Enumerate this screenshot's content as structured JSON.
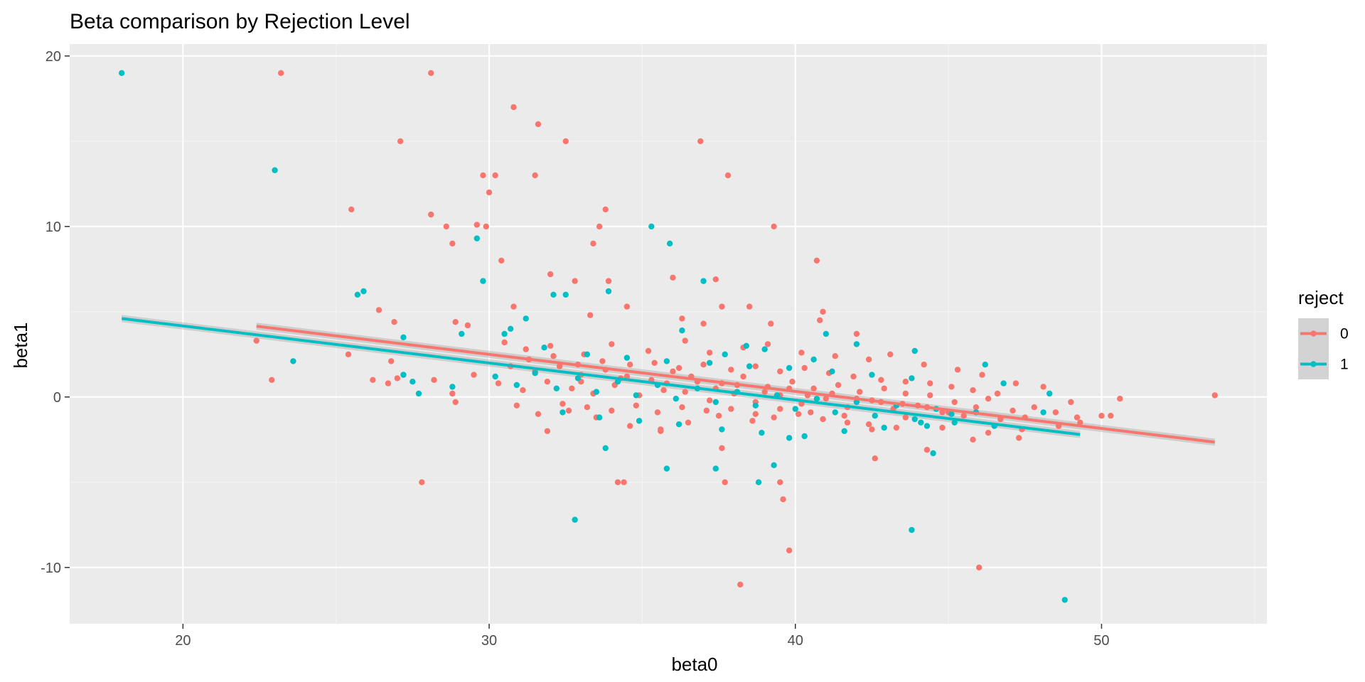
{
  "chart_data": {
    "type": "scatter",
    "title": "Beta comparison by Rejection Level",
    "xlabel": "beta0",
    "ylabel": "beta1",
    "xlim": [
      16.3,
      55.4
    ],
    "ylim": [
      -13.3,
      20.7
    ],
    "x_major_ticks": [
      20,
      30,
      40,
      50
    ],
    "x_minor_ticks": [
      25,
      35,
      45,
      55
    ],
    "y_major_ticks": [
      -10,
      0,
      10,
      20
    ],
    "y_minor_ticks": [
      -5,
      5,
      15
    ],
    "x_tick_labels": [
      "20",
      "30",
      "40",
      "50"
    ],
    "y_tick_labels": [
      "-10",
      "0",
      "10",
      "20"
    ],
    "grid": true,
    "panel_background": "#ebebeb",
    "legend": {
      "title": "reject",
      "placement": "right",
      "entries": [
        {
          "label": "0",
          "color": "#f8766d"
        },
        {
          "label": "1",
          "color": "#00bfc4"
        }
      ]
    },
    "series": [
      {
        "name": "0",
        "color": "#f8766d",
        "points": [
          [
            23.2,
            19
          ],
          [
            28.1,
            19
          ],
          [
            30.8,
            17
          ],
          [
            31.6,
            16
          ],
          [
            32.5,
            15
          ],
          [
            27.1,
            15
          ],
          [
            36.9,
            15
          ],
          [
            31.5,
            13
          ],
          [
            37.8,
            13
          ],
          [
            29.8,
            13
          ],
          [
            30.2,
            13
          ],
          [
            30.0,
            12
          ],
          [
            25.5,
            11
          ],
          [
            33.8,
            11
          ],
          [
            28.1,
            10.7
          ],
          [
            28.6,
            10
          ],
          [
            29.9,
            10
          ],
          [
            33.6,
            10
          ],
          [
            39.3,
            10
          ],
          [
            29.6,
            10.1
          ],
          [
            28.8,
            9
          ],
          [
            33.4,
            9
          ],
          [
            30.4,
            8
          ],
          [
            40.7,
            8
          ],
          [
            32.0,
            7.2
          ],
          [
            36.0,
            7
          ],
          [
            37.4,
            6.9
          ],
          [
            33.9,
            6.8
          ],
          [
            32.8,
            6.8
          ],
          [
            26.4,
            5.1
          ],
          [
            26.9,
            4.4
          ],
          [
            30.8,
            5.3
          ],
          [
            33.3,
            4.8
          ],
          [
            34.5,
            5.3
          ],
          [
            37.6,
            5.3
          ],
          [
            38.5,
            5.3
          ],
          [
            39.2,
            4.3
          ],
          [
            40.9,
            5
          ],
          [
            40.8,
            4.5
          ],
          [
            42.0,
            3.7
          ],
          [
            36.3,
            4.6
          ],
          [
            37.0,
            4.3
          ],
          [
            29.3,
            4.2
          ],
          [
            28.9,
            4.4
          ],
          [
            22.4,
            3.3
          ],
          [
            25.4,
            2.5
          ],
          [
            22.9,
            1.0
          ],
          [
            26.2,
            1.0
          ],
          [
            26.7,
            0.8
          ],
          [
            26.8,
            2.1
          ],
          [
            27.0,
            1.1
          ],
          [
            27.2,
            1.3
          ],
          [
            28.2,
            1.0
          ],
          [
            28.8,
            0.2
          ],
          [
            28.9,
            -0.3
          ],
          [
            29.5,
            1.3
          ],
          [
            27.8,
            -5
          ],
          [
            34.2,
            -5
          ],
          [
            34.4,
            -5
          ],
          [
            37.7,
            -5
          ],
          [
            39.5,
            -5
          ],
          [
            39.6,
            -6
          ],
          [
            39.8,
            -9
          ],
          [
            38.2,
            -11
          ],
          [
            46.0,
            -10
          ],
          [
            44.3,
            -3.1
          ],
          [
            42.6,
            -3.6
          ],
          [
            37.6,
            -3
          ],
          [
            30.5,
            3.2
          ],
          [
            31.2,
            2.8
          ],
          [
            32.0,
            3.0
          ],
          [
            33.1,
            2.5
          ],
          [
            34.0,
            3.1
          ],
          [
            35.2,
            2.7
          ],
          [
            36.4,
            3.3
          ],
          [
            37.2,
            2.6
          ],
          [
            38.3,
            2.9
          ],
          [
            39.1,
            3.1
          ],
          [
            40.2,
            2.6
          ],
          [
            41.3,
            2.4
          ],
          [
            42.4,
            2.2
          ],
          [
            43.1,
            2.5
          ],
          [
            44.2,
            1.9
          ],
          [
            45.3,
            1.6
          ],
          [
            46.1,
            1.3
          ],
          [
            47.2,
            0.8
          ],
          [
            48.1,
            0.6
          ],
          [
            49.0,
            -0.3
          ],
          [
            50.0,
            -1.1
          ],
          [
            50.3,
            -1.1
          ],
          [
            50.6,
            -0.1
          ],
          [
            53.7,
            0.1
          ],
          [
            49.3,
            -1.5
          ],
          [
            48.6,
            -1.7
          ],
          [
            47.4,
            -1.9
          ],
          [
            47.3,
            -2.4
          ],
          [
            46.3,
            -2.1
          ],
          [
            45.8,
            -2.5
          ],
          [
            44.8,
            -1.8
          ],
          [
            43.6,
            -1.2
          ],
          [
            42.5,
            -1.9
          ],
          [
            41.6,
            -1.1
          ],
          [
            40.5,
            -0.9
          ],
          [
            39.5,
            -0.7
          ],
          [
            38.6,
            -1.4
          ],
          [
            37.5,
            -1.1
          ],
          [
            36.5,
            -1.5
          ],
          [
            35.6,
            -2.0
          ],
          [
            34.6,
            -1.7
          ],
          [
            33.5,
            -1.2
          ],
          [
            32.6,
            -0.8
          ],
          [
            31.6,
            -1.0
          ],
          [
            30.9,
            -0.5
          ],
          [
            31.9,
            -2.0
          ],
          [
            35.6,
            -1.9
          ],
          [
            30.3,
            0.8
          ],
          [
            30.7,
            1.8
          ],
          [
            31.1,
            0.4
          ],
          [
            31.5,
            1.5
          ],
          [
            31.9,
            0.9
          ],
          [
            32.3,
            1.8
          ],
          [
            32.7,
            0.5
          ],
          [
            33.0,
            1.3
          ],
          [
            33.4,
            0.2
          ],
          [
            33.8,
            1.6
          ],
          [
            34.1,
            0.7
          ],
          [
            34.5,
            1.2
          ],
          [
            34.9,
            0.1
          ],
          [
            35.3,
            1.0
          ],
          [
            35.7,
            0.4
          ],
          [
            36.0,
            1.5
          ],
          [
            36.4,
            0.3
          ],
          [
            36.8,
            0.9
          ],
          [
            37.2,
            -0.2
          ],
          [
            37.6,
            0.8
          ],
          [
            38.0,
            0.2
          ],
          [
            38.3,
            1.2
          ],
          [
            38.7,
            -0.3
          ],
          [
            39.1,
            0.6
          ],
          [
            39.5,
            0.1
          ],
          [
            39.9,
            0.9
          ],
          [
            40.2,
            -0.4
          ],
          [
            40.6,
            0.5
          ],
          [
            41.0,
            -0.1
          ],
          [
            41.4,
            0.7
          ],
          [
            41.7,
            -0.6
          ],
          [
            42.1,
            0.3
          ],
          [
            42.5,
            -0.2
          ],
          [
            42.9,
            0.5
          ],
          [
            43.2,
            -0.7
          ],
          [
            43.6,
            0.2
          ],
          [
            44.0,
            -0.5
          ],
          [
            44.4,
            0.1
          ],
          [
            44.8,
            -0.9
          ],
          [
            45.2,
            -0.3
          ],
          [
            45.5,
            -1.1
          ],
          [
            45.9,
            -0.6
          ],
          [
            46.3,
            -0.1
          ],
          [
            46.7,
            -1.3
          ],
          [
            47.1,
            -0.8
          ],
          [
            47.5,
            -1.2
          ],
          [
            31.3,
            2.2
          ],
          [
            32.1,
            2.4
          ],
          [
            32.9,
            1.9
          ],
          [
            33.7,
            2.1
          ],
          [
            34.6,
            1.9
          ],
          [
            35.4,
            2.0
          ],
          [
            36.2,
            1.7
          ],
          [
            37.0,
            1.9
          ],
          [
            37.9,
            1.6
          ],
          [
            38.7,
            1.8
          ],
          [
            39.5,
            1.5
          ],
          [
            40.3,
            1.7
          ],
          [
            41.1,
            1.4
          ],
          [
            41.9,
            1.2
          ],
          [
            42.8,
            1.0
          ],
          [
            43.6,
            0.9
          ],
          [
            44.4,
            0.8
          ],
          [
            45.1,
            0.6
          ],
          [
            45.8,
            0.4
          ],
          [
            46.6,
            0.2
          ],
          [
            32.4,
            -0.4
          ],
          [
            33.2,
            -0.6
          ],
          [
            34.0,
            -0.8
          ],
          [
            34.8,
            -0.5
          ],
          [
            35.5,
            -0.9
          ],
          [
            36.3,
            -0.6
          ],
          [
            37.1,
            -0.8
          ],
          [
            37.9,
            -0.7
          ],
          [
            38.7,
            -1.0
          ],
          [
            39.3,
            -1.2
          ],
          [
            40.1,
            -1.0
          ],
          [
            40.9,
            -1.3
          ],
          [
            41.7,
            -1.5
          ],
          [
            42.4,
            -1.6
          ],
          [
            43.3,
            -1.8
          ],
          [
            33.0,
            0.9
          ],
          [
            34.3,
            1.1
          ],
          [
            35.8,
            0.8
          ],
          [
            36.6,
            1.2
          ],
          [
            37.4,
            0.5
          ],
          [
            38.1,
            0.7
          ],
          [
            39.0,
            0.3
          ],
          [
            39.8,
            0.5
          ],
          [
            40.4,
            0.1
          ],
          [
            41.2,
            0.2
          ],
          [
            42.0,
            -0.1
          ],
          [
            42.8,
            -0.3
          ],
          [
            43.5,
            -0.4
          ],
          [
            44.3,
            -0.6
          ],
          [
            45.0,
            -0.9
          ],
          [
            47.8,
            -0.6
          ],
          [
            48.5,
            -0.9
          ],
          [
            49.2,
            -1.2
          ]
        ],
        "trend": {
          "x_start": 22.4,
          "y_start": 4.15,
          "x_end": 53.7,
          "y_end": -2.65
        }
      },
      {
        "name": "1",
        "color": "#00bfc4",
        "points": [
          [
            18.0,
            19
          ],
          [
            23.0,
            13.3
          ],
          [
            29.6,
            9.3
          ],
          [
            35.3,
            10
          ],
          [
            35.9,
            9
          ],
          [
            29.8,
            6.8
          ],
          [
            33.9,
            6.2
          ],
          [
            25.9,
            6.2
          ],
          [
            25.7,
            6.0
          ],
          [
            32.1,
            6.0
          ],
          [
            32.5,
            6.0
          ],
          [
            37.0,
            6.8
          ],
          [
            30.7,
            4.0
          ],
          [
            31.2,
            4.6
          ],
          [
            27.2,
            3.5
          ],
          [
            27.7,
            0.2
          ],
          [
            23.6,
            2.1
          ],
          [
            27.2,
            1.3
          ],
          [
            27.5,
            0.9
          ],
          [
            28.8,
            0.6
          ],
          [
            29.1,
            3.7
          ],
          [
            30.5,
            3.7
          ],
          [
            33.8,
            -3.0
          ],
          [
            32.8,
            -7.2
          ],
          [
            37.4,
            -4.2
          ],
          [
            38.8,
            -5.0
          ],
          [
            39.3,
            -4.0
          ],
          [
            43.8,
            -7.8
          ],
          [
            48.8,
            -11.9
          ],
          [
            44.5,
            -3.3
          ],
          [
            35.8,
            -4.2
          ],
          [
            39.8,
            -2.4
          ],
          [
            46.2,
            1.9
          ],
          [
            46.8,
            0.8
          ],
          [
            48.3,
            0.2
          ],
          [
            48.1,
            -0.9
          ],
          [
            45.1,
            -1.0
          ],
          [
            44.3,
            -1.7
          ],
          [
            36.3,
            3.9
          ],
          [
            37.7,
            2.5
          ],
          [
            38.4,
            3.0
          ],
          [
            39.0,
            2.8
          ],
          [
            41.0,
            3.7
          ],
          [
            42.0,
            3.1
          ],
          [
            43.9,
            2.7
          ],
          [
            40.6,
            2.2
          ],
          [
            30.2,
            1.2
          ],
          [
            30.9,
            0.7
          ],
          [
            31.5,
            1.4
          ],
          [
            32.2,
            0.5
          ],
          [
            32.9,
            1.1
          ],
          [
            33.5,
            0.3
          ],
          [
            34.2,
            0.9
          ],
          [
            34.8,
            0.1
          ],
          [
            35.5,
            0.7
          ],
          [
            36.1,
            -0.1
          ],
          [
            36.8,
            0.5
          ],
          [
            37.4,
            -0.3
          ],
          [
            38.1,
            0.3
          ],
          [
            38.7,
            -0.5
          ],
          [
            39.4,
            0.1
          ],
          [
            40.0,
            -0.7
          ],
          [
            40.7,
            -0.1
          ],
          [
            41.3,
            -0.9
          ],
          [
            42.0,
            -0.3
          ],
          [
            42.6,
            -1.1
          ],
          [
            43.3,
            -0.5
          ],
          [
            43.9,
            -1.3
          ],
          [
            44.6,
            -0.7
          ],
          [
            45.2,
            -1.5
          ],
          [
            45.9,
            -0.9
          ],
          [
            46.5,
            -1.7
          ],
          [
            31.8,
            2.9
          ],
          [
            33.2,
            2.5
          ],
          [
            34.5,
            2.3
          ],
          [
            35.8,
            2.1
          ],
          [
            37.2,
            2.0
          ],
          [
            38.5,
            1.8
          ],
          [
            39.8,
            1.7
          ],
          [
            41.2,
            1.5
          ],
          [
            42.5,
            1.3
          ],
          [
            43.8,
            1.1
          ],
          [
            32.4,
            -0.9
          ],
          [
            33.6,
            -1.2
          ],
          [
            34.9,
            -1.4
          ],
          [
            36.2,
            -1.6
          ],
          [
            37.6,
            -1.9
          ],
          [
            38.9,
            -2.1
          ],
          [
            40.3,
            -2.3
          ],
          [
            41.6,
            -2.0
          ],
          [
            42.9,
            -1.8
          ],
          [
            44.1,
            -1.5
          ]
        ],
        "trend": {
          "x_start": 18.0,
          "y_start": 4.6,
          "x_end": 49.3,
          "y_end": -2.2
        }
      }
    ]
  }
}
